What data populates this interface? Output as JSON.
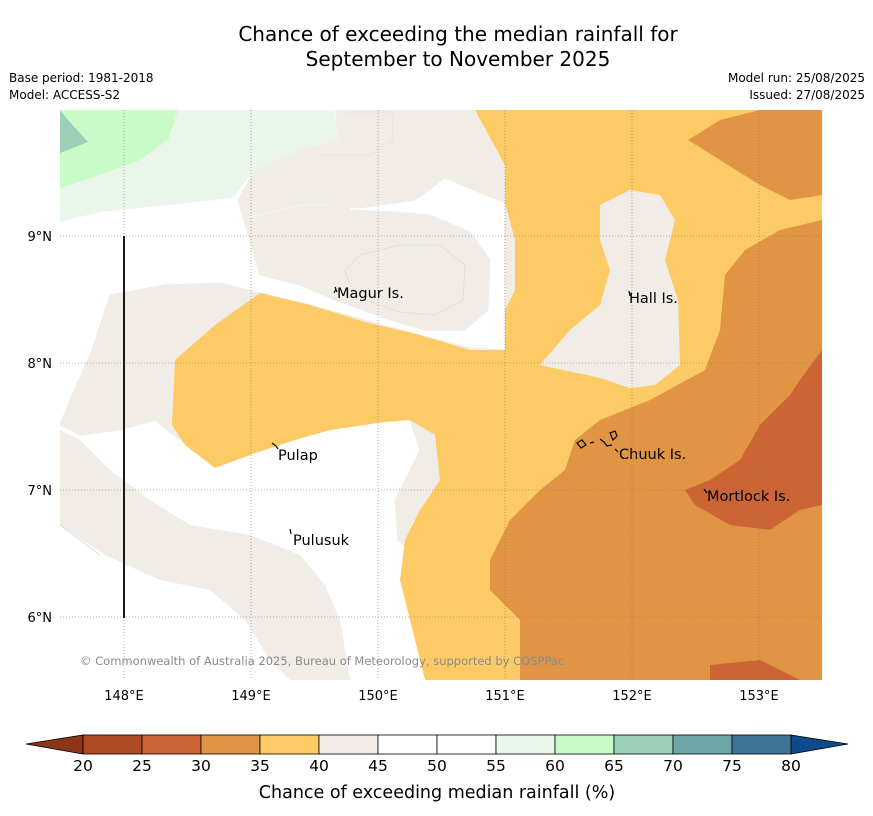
{
  "title_line1": "Chance of exceeding the median rainfall for",
  "title_line2": "September to November 2025",
  "base_period": "Base period: 1981-2018",
  "model": "Model: ACCESS-S2",
  "model_run": "Model run: 25/08/2025",
  "issued": "Issued: 27/08/2025",
  "copyright": "© Commonwealth of Australia 2025, Bureau of Meteorology, supported by COSPPac",
  "map": {
    "lat_ticks": [
      "9°N",
      "8°N",
      "7°N",
      "6°N"
    ],
    "lon_ticks": [
      "148°E",
      "149°E",
      "150°E",
      "151°E",
      "152°E",
      "153°E"
    ],
    "places": [
      "Magur Is.",
      "Hall Is.",
      "Pulap",
      "Chuuk Is.",
      "Mortlock Is.",
      "Pulusuk"
    ]
  },
  "colorbar": {
    "title": "Chance of exceeding median rainfall (%)",
    "ticks": [
      "20",
      "25",
      "30",
      "35",
      "40",
      "45",
      "50",
      "55",
      "60",
      "65",
      "70",
      "75",
      "80"
    ],
    "colors": [
      "#b04a25",
      "#cc6533",
      "#e09444",
      "#fdcb66",
      "#f1ece5",
      "#ffffff",
      "#ffffff",
      "#eaf6e9",
      "#c9fbc9",
      "#9ccfb8",
      "#6da6a9",
      "#3f7499"
    ],
    "under_color": "#8c3519",
    "over_color": "#0f4a8a"
  }
}
